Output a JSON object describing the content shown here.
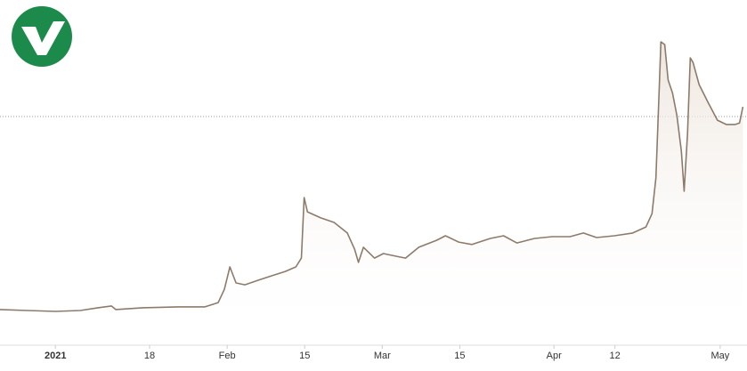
{
  "chart_data": {
    "type": "line",
    "x": [
      -10.0,
      -5.1,
      0,
      4.5,
      7.7,
      10.1,
      10.9,
      15.8,
      22.2,
      27.0,
      29.4,
      30.5,
      31.5,
      32.6,
      34.2,
      36.6,
      39.1,
      41.5,
      43.4,
      44.4,
      44.9,
      45.5,
      47.9,
      50.3,
      52.7,
      54.0,
      54.7,
      55.6,
      57.6,
      59.2,
      61.6,
      63.2,
      65.6,
      68.8,
      70.4,
      72.8,
      75.2,
      78.5,
      80.9,
      83.3,
      86.5,
      89.7,
      92.9,
      95.3,
      97.7,
      100.9,
      104.2,
      106.6,
      107.7,
      108.4,
      109.0,
      109.3,
      110.0,
      110.6,
      111.4,
      112.2,
      113.0,
      113.5,
      114.1,
      114.6,
      115.1,
      116.2,
      117.8,
      119.5,
      121.1,
      122.7,
      123.5,
      124.1
    ],
    "series": [
      {
        "color": "#8c7b6b",
        "values": [
          10.9,
          10.6,
          10.3,
          10.6,
          11.5,
          12.1,
          10.9,
          11.5,
          11.8,
          11.8,
          13.2,
          17.6,
          25.0,
          19.7,
          19.1,
          20.6,
          22.1,
          23.5,
          25.0,
          27.9,
          47.9,
          43.2,
          41.2,
          39.7,
          36.2,
          30.9,
          26.5,
          31.5,
          27.9,
          29.4,
          28.5,
          27.9,
          31.5,
          33.8,
          35.3,
          33.2,
          32.4,
          34.4,
          35.3,
          32.9,
          34.4,
          35.0,
          35.0,
          36.2,
          34.7,
          35.3,
          36.2,
          38.2,
          42.6,
          54.4,
          83.8,
          99.4,
          98.5,
          86.8,
          82.4,
          75.0,
          63.2,
          50.0,
          69.1,
          94.1,
          92.6,
          85.3,
          79.4,
          73.5,
          72.1,
          72.1,
          72.6,
          77.9
        ]
      }
    ],
    "xlim": [
      -10,
      124.2
    ],
    "xticks": [
      {
        "value": 0,
        "label": "2021"
      },
      {
        "value": 17,
        "label": "18"
      },
      {
        "value": 31,
        "label": "Feb"
      },
      {
        "value": 45,
        "label": "15"
      },
      {
        "value": 59,
        "label": "Mar"
      },
      {
        "value": 73,
        "label": "15"
      },
      {
        "value": 90,
        "label": "Apr"
      },
      {
        "value": 101,
        "label": "12"
      },
      {
        "value": 120,
        "label": "May"
      }
    ],
    "ylim": [
      0,
      100
    ],
    "reference_line": 74.7
  }
}
